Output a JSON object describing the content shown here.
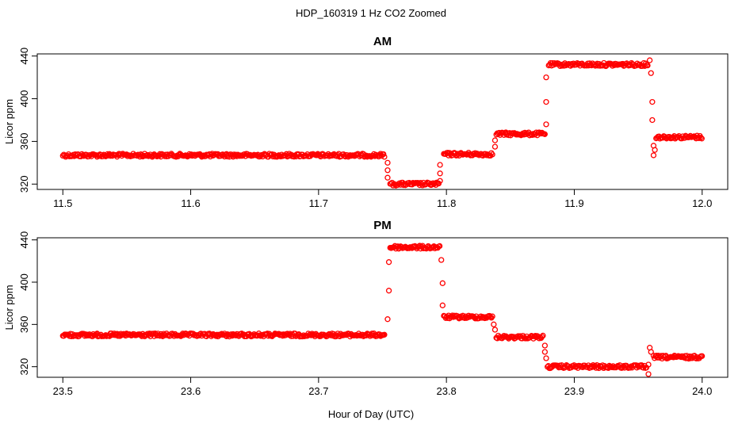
{
  "title": "HDP_160319  1 Hz CO2 Zoomed",
  "xlabel": "Hour of Day (UTC)",
  "colors": {
    "points": "#ff0000",
    "axis": "#000000"
  },
  "chart_data": [
    {
      "type": "scatter",
      "title": "AM",
      "ylabel": "Licor ppm",
      "xlim": [
        11.48,
        12.02
      ],
      "ylim": [
        315,
        442
      ],
      "xticks": [
        "11.5",
        "11.6",
        "11.7",
        "11.8",
        "11.9",
        "12.0"
      ],
      "yticks": [
        "320",
        "360",
        "400",
        "440"
      ],
      "segments": [
        {
          "x_start": 11.5,
          "x_end": 11.752,
          "y": 347
        },
        {
          "x_start": 11.756,
          "x_end": 11.794,
          "y": 320
        },
        {
          "x_start": 11.798,
          "x_end": 11.836,
          "y": 348
        },
        {
          "x_start": 11.839,
          "x_end": 11.877,
          "y": 367
        },
        {
          "x_start": 11.88,
          "x_end": 11.958,
          "y": 432
        },
        {
          "x_start": 11.964,
          "x_end": 12.0,
          "y": 364
        }
      ],
      "transitions": [
        {
          "x": 11.754,
          "y": 340
        },
        {
          "x": 11.754,
          "y": 333
        },
        {
          "x": 11.754,
          "y": 326
        },
        {
          "x": 11.795,
          "y": 323
        },
        {
          "x": 11.795,
          "y": 330
        },
        {
          "x": 11.795,
          "y": 338
        },
        {
          "x": 11.838,
          "y": 355
        },
        {
          "x": 11.838,
          "y": 361
        },
        {
          "x": 11.878,
          "y": 376
        },
        {
          "x": 11.878,
          "y": 397
        },
        {
          "x": 11.878,
          "y": 420
        },
        {
          "x": 11.959,
          "y": 436
        },
        {
          "x": 11.96,
          "y": 424
        },
        {
          "x": 11.961,
          "y": 397
        },
        {
          "x": 11.961,
          "y": 380
        },
        {
          "x": 11.962,
          "y": 356
        },
        {
          "x": 11.962,
          "y": 347
        },
        {
          "x": 11.963,
          "y": 352
        }
      ]
    },
    {
      "type": "scatter",
      "title": "PM",
      "ylabel": "Licor ppm",
      "xlim": [
        23.48,
        24.02
      ],
      "ylim": [
        310,
        442
      ],
      "xticks": [
        "23.5",
        "23.6",
        "23.7",
        "23.8",
        "23.9",
        "24.0"
      ],
      "yticks": [
        "320",
        "360",
        "400",
        "440"
      ],
      "segments": [
        {
          "x_start": 23.5,
          "x_end": 23.752,
          "y": 350
        },
        {
          "x_start": 23.756,
          "x_end": 23.795,
          "y": 433
        },
        {
          "x_start": 23.798,
          "x_end": 23.836,
          "y": 367
        },
        {
          "x_start": 23.839,
          "x_end": 23.876,
          "y": 348
        },
        {
          "x_start": 23.879,
          "x_end": 23.957,
          "y": 320
        },
        {
          "x_start": 23.962,
          "x_end": 24.0,
          "y": 329
        }
      ],
      "transitions": [
        {
          "x": 23.754,
          "y": 365
        },
        {
          "x": 23.755,
          "y": 392
        },
        {
          "x": 23.755,
          "y": 419
        },
        {
          "x": 23.796,
          "y": 421
        },
        {
          "x": 23.797,
          "y": 399
        },
        {
          "x": 23.797,
          "y": 378
        },
        {
          "x": 23.837,
          "y": 360
        },
        {
          "x": 23.838,
          "y": 355
        },
        {
          "x": 23.877,
          "y": 340
        },
        {
          "x": 23.877,
          "y": 334
        },
        {
          "x": 23.878,
          "y": 328
        },
        {
          "x": 23.958,
          "y": 322
        },
        {
          "x": 23.958,
          "y": 313
        },
        {
          "x": 23.959,
          "y": 338
        },
        {
          "x": 23.96,
          "y": 334
        }
      ]
    }
  ]
}
